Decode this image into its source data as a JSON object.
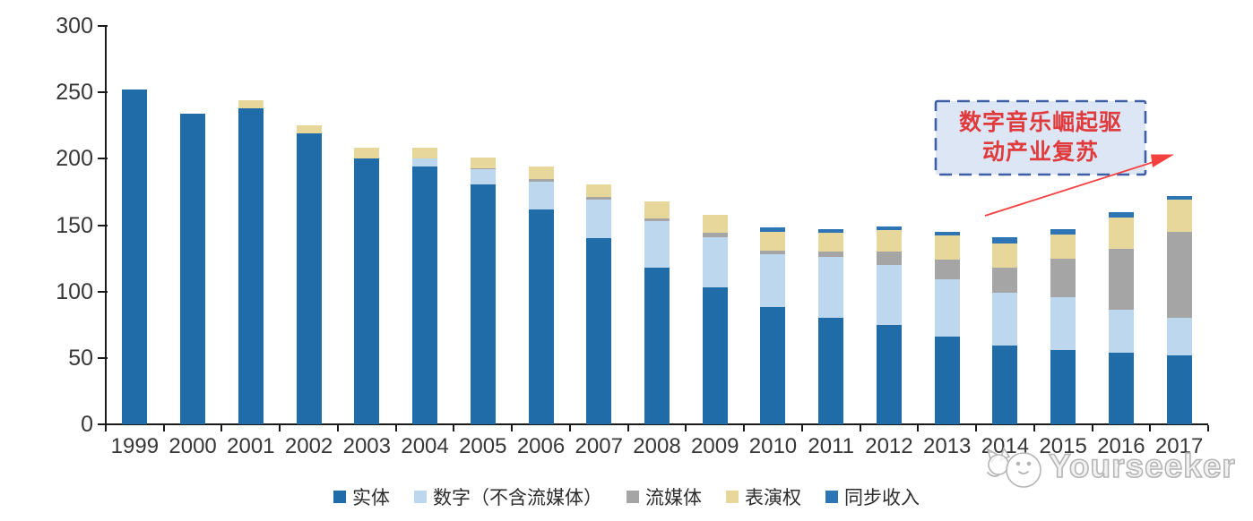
{
  "chart_data": {
    "type": "bar",
    "stacked": true,
    "title": "",
    "xlabel": "",
    "ylabel": "",
    "categories": [
      "1999",
      "2000",
      "2001",
      "2002",
      "2003",
      "2004",
      "2005",
      "2006",
      "2007",
      "2008",
      "2009",
      "2010",
      "2011",
      "2012",
      "2013",
      "2014",
      "2015",
      "2016",
      "2017"
    ],
    "series": [
      {
        "id": "physical",
        "name": "实体",
        "color": "#1F6CA8",
        "values": [
          252,
          234,
          238,
          219,
          200,
          194,
          181,
          162,
          140,
          118,
          103,
          88,
          80,
          75,
          66,
          59,
          56,
          54,
          52
        ]
      },
      {
        "id": "digital",
        "name": "数字（不含流媒体）",
        "color": "#BDD7EE",
        "values": [
          0,
          0,
          0,
          0,
          0,
          6,
          11,
          21,
          29,
          35,
          38,
          40,
          46,
          45,
          43,
          40,
          40,
          32,
          28
        ]
      },
      {
        "id": "streaming",
        "name": "流媒体",
        "color": "#A5A5A5",
        "values": [
          0,
          0,
          0,
          0,
          0,
          0,
          1,
          2,
          2,
          2,
          3,
          3,
          4,
          10,
          15,
          19,
          29,
          46,
          65
        ]
      },
      {
        "id": "performance",
        "name": "表演权",
        "color": "#E7D79B",
        "values": [
          0,
          0,
          6,
          6,
          8,
          8,
          8,
          9,
          10,
          13,
          14,
          14,
          14,
          16,
          18,
          18,
          18,
          24,
          24
        ]
      },
      {
        "id": "sync",
        "name": "同步收入",
        "color": "#2E75B6",
        "values": [
          0,
          0,
          0,
          0,
          0,
          0,
          0,
          0,
          0,
          0,
          0,
          3,
          3,
          3,
          3,
          5,
          4,
          4,
          3
        ]
      }
    ],
    "ylim": [
      0,
      300
    ],
    "yticks": [
      0,
      50,
      100,
      150,
      200,
      250,
      300
    ],
    "grid": false,
    "legend_position": "bottom"
  },
  "annotation": {
    "line1": "数字音乐崛起驱",
    "line2": "动产业复苏",
    "text_color": "#E03A3C",
    "box_fill": "#DCE6F5",
    "box_border": "#3E5FA6",
    "arrow_color": "#F4403F"
  },
  "watermark": {
    "text": "Yourseeker"
  },
  "axis": {
    "line_color": "#1A1A1A",
    "label_color": "#373737"
  }
}
